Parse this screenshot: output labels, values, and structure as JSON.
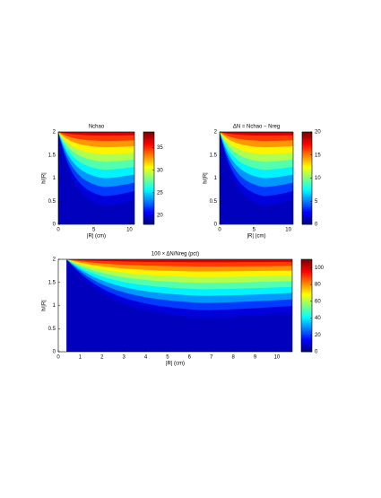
{
  "chart_data": [
    {
      "type": "contour",
      "title": "Nchao",
      "xlabel": "|R| (cm)",
      "ylabel": "h/|R|",
      "xlim": [
        0,
        10.7
      ],
      "xticks": [
        0,
        5,
        10
      ],
      "ylim": [
        0,
        2
      ],
      "yticks": [
        0,
        0.5,
        1,
        1.5,
        2
      ],
      "colormap": "jet",
      "clim": [
        18,
        38.5
      ],
      "cticks": [
        20,
        25,
        30,
        35
      ]
    },
    {
      "type": "contour",
      "title": "ΔN = Nchao − Nreg",
      "xlabel": "|R| (cm)",
      "ylabel": "h/|R|",
      "xlim": [
        0,
        10.7
      ],
      "xticks": [
        0,
        5,
        10
      ],
      "ylim": [
        0,
        2
      ],
      "yticks": [
        0,
        0.5,
        1,
        1.5,
        2
      ],
      "colormap": "jet",
      "clim": [
        0,
        20
      ],
      "cticks": [
        0,
        5,
        10,
        15,
        20
      ]
    },
    {
      "type": "contour",
      "title": "100 × ΔN/Nreg (pct)",
      "xlabel": "|R| (cm)",
      "ylabel": "h/|R|",
      "xlim": [
        0,
        10.7
      ],
      "xticks": [
        0,
        1,
        2,
        3,
        4,
        5,
        6,
        7,
        8,
        9,
        10
      ],
      "ylim": [
        0,
        2
      ],
      "yticks": [
        0,
        0.5,
        1,
        1.5,
        2
      ],
      "colormap": "jet",
      "clim": [
        0,
        110
      ],
      "cticks": [
        0,
        20,
        40,
        60,
        80,
        100
      ]
    }
  ]
}
